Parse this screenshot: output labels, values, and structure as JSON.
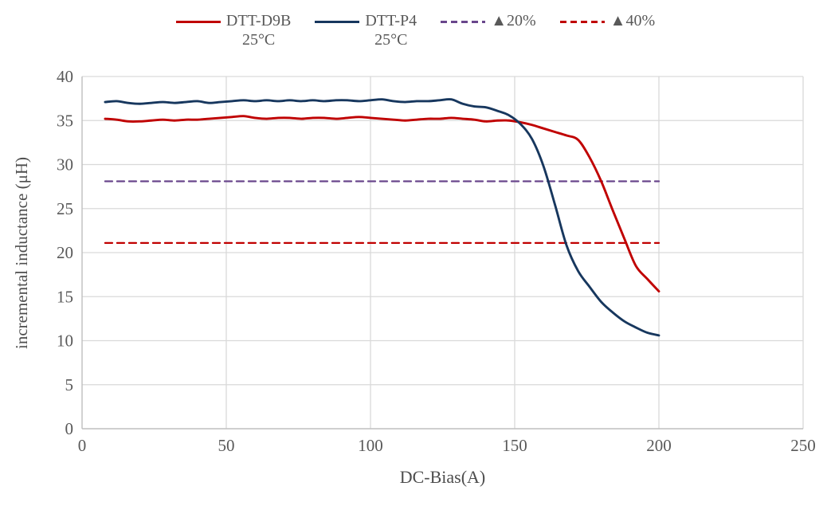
{
  "legend": {
    "items": [
      {
        "id": "dtt-d9b",
        "label": "DTT-D9B",
        "sublabel": "25°C",
        "color": "#C00000",
        "dash": false
      },
      {
        "id": "dtt-p4",
        "label": "DTT-P4",
        "sublabel": "25°C",
        "color": "#17375E",
        "dash": false
      },
      {
        "id": "ref-20pct",
        "label": "▲20%",
        "sublabel": "",
        "color": "#69468C",
        "dash": true
      },
      {
        "id": "ref-40pct",
        "label": "▲40%",
        "sublabel": "",
        "color": "#C00000",
        "dash": true
      }
    ]
  },
  "chart_data": {
    "type": "line",
    "title": "",
    "xlabel": "DC-Bias(A)",
    "ylabel": "incremental inductance (μH)",
    "xlim": [
      0,
      250
    ],
    "ylim": [
      0,
      40
    ],
    "xticks": [
      0,
      50,
      100,
      150,
      200,
      250
    ],
    "yticks": [
      0,
      5,
      10,
      15,
      20,
      25,
      30,
      35,
      40
    ],
    "grid": true,
    "legend_position": "top",
    "colors": {
      "gridline": "#D9D9D9",
      "axisline": "#BFBFBF",
      "tick_label": "#595959"
    },
    "series": [
      {
        "id": "ref-20pct",
        "name": "▲20%",
        "color": "#69468C",
        "dash": true,
        "x": [
          8,
          200
        ],
        "y": [
          28.1,
          28.1
        ]
      },
      {
        "id": "ref-40pct",
        "name": "▲40%",
        "color": "#C00000",
        "dash": true,
        "x": [
          8,
          200
        ],
        "y": [
          21.1,
          21.1
        ]
      },
      {
        "id": "dtt-d9b",
        "name": "DTT-D9B 25°C",
        "color": "#C00000",
        "dash": false,
        "x": [
          8,
          12,
          16,
          20,
          24,
          28,
          32,
          36,
          40,
          44,
          48,
          52,
          56,
          60,
          64,
          68,
          72,
          76,
          80,
          84,
          88,
          92,
          96,
          100,
          104,
          108,
          112,
          116,
          120,
          124,
          128,
          132,
          136,
          140,
          144,
          148,
          152,
          156,
          160,
          164,
          168,
          172,
          176,
          180,
          184,
          188,
          192,
          196,
          200
        ],
        "y": [
          35.2,
          35.1,
          34.9,
          34.9,
          35.0,
          35.1,
          35.0,
          35.1,
          35.1,
          35.2,
          35.3,
          35.4,
          35.5,
          35.3,
          35.2,
          35.3,
          35.3,
          35.2,
          35.3,
          35.3,
          35.2,
          35.3,
          35.4,
          35.3,
          35.2,
          35.1,
          35.0,
          35.1,
          35.2,
          35.2,
          35.3,
          35.2,
          35.1,
          34.9,
          35.0,
          35.0,
          34.8,
          34.5,
          34.1,
          33.7,
          33.3,
          32.8,
          30.8,
          28.1,
          24.8,
          21.6,
          18.5,
          17.0,
          15.6
        ]
      },
      {
        "id": "dtt-p4",
        "name": "DTT-P4 25°C",
        "color": "#17375E",
        "dash": false,
        "x": [
          8,
          12,
          16,
          20,
          24,
          28,
          32,
          36,
          40,
          44,
          48,
          52,
          56,
          60,
          64,
          68,
          72,
          76,
          80,
          84,
          88,
          92,
          96,
          100,
          104,
          108,
          112,
          116,
          120,
          124,
          128,
          132,
          136,
          140,
          144,
          148,
          152,
          156,
          160,
          164,
          168,
          172,
          176,
          180,
          184,
          188,
          192,
          196,
          200
        ],
        "y": [
          37.1,
          37.2,
          37.0,
          36.9,
          37.0,
          37.1,
          37.0,
          37.1,
          37.2,
          37.0,
          37.1,
          37.2,
          37.3,
          37.2,
          37.3,
          37.2,
          37.3,
          37.2,
          37.3,
          37.2,
          37.3,
          37.3,
          37.2,
          37.3,
          37.4,
          37.2,
          37.1,
          37.2,
          37.2,
          37.3,
          37.4,
          36.9,
          36.6,
          36.5,
          36.1,
          35.6,
          34.6,
          32.9,
          29.8,
          25.4,
          20.8,
          17.9,
          16.1,
          14.4,
          13.2,
          12.2,
          11.5,
          10.9,
          10.6
        ]
      }
    ]
  }
}
